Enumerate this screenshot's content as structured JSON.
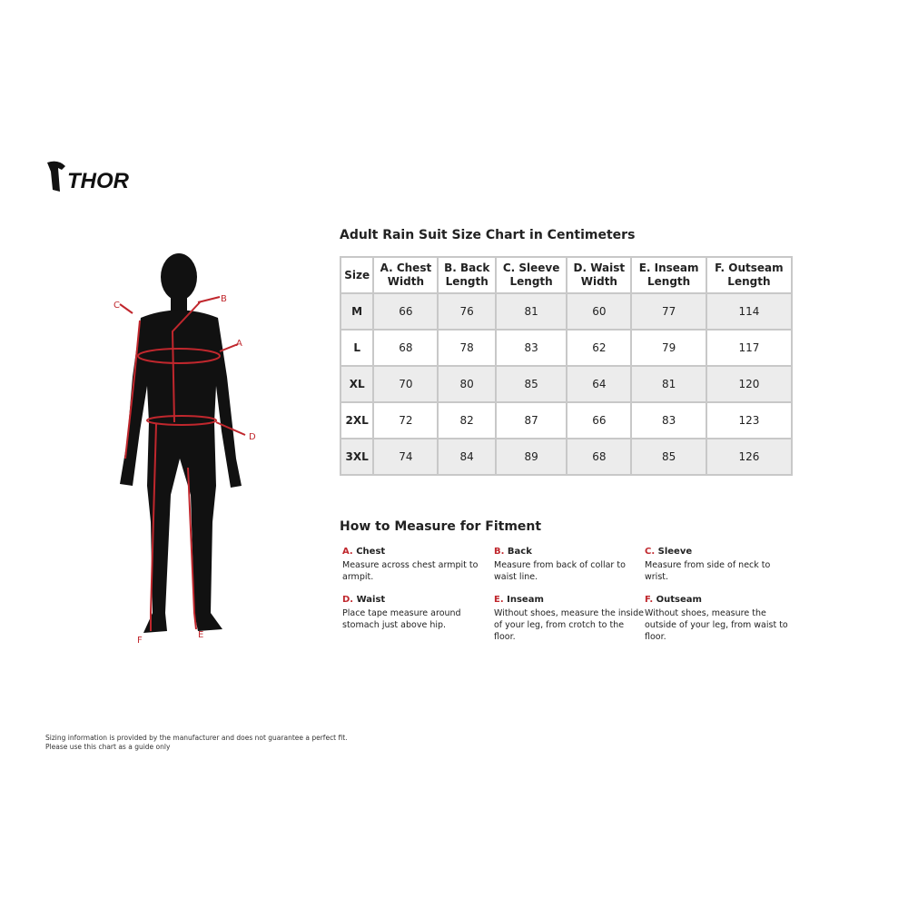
{
  "brand": "THOR",
  "title": "Adult Rain Suit Size Chart in Centimeters",
  "table": {
    "headers": [
      [
        "Size",
        ""
      ],
      [
        "A. Chest",
        "Width"
      ],
      [
        "B. Back",
        "Length"
      ],
      [
        "C. Sleeve",
        "Length"
      ],
      [
        "D. Waist",
        "Width"
      ],
      [
        "E. Inseam",
        "Length"
      ],
      [
        "F. Outseam",
        "Length"
      ]
    ],
    "rows": [
      [
        "M",
        "66",
        "76",
        "81",
        "60",
        "77",
        "114"
      ],
      [
        "L",
        "68",
        "78",
        "83",
        "62",
        "79",
        "117"
      ],
      [
        "XL",
        "70",
        "80",
        "85",
        "64",
        "81",
        "120"
      ],
      [
        "2XL",
        "72",
        "82",
        "87",
        "66",
        "83",
        "123"
      ],
      [
        "3XL",
        "74",
        "84",
        "89",
        "68",
        "85",
        "126"
      ]
    ]
  },
  "howto_title": "How to Measure for Fitment",
  "measures": [
    {
      "letter": "A.",
      "name": "Chest",
      "desc": "Measure across chest armpit to armpit."
    },
    {
      "letter": "B.",
      "name": "Back",
      "desc": "Measure from back of collar to waist line."
    },
    {
      "letter": "C.",
      "name": "Sleeve",
      "desc": "Measure from side of neck to wrist."
    },
    {
      "letter": "D.",
      "name": "Waist",
      "desc": "Place tape measure around stomach just above hip."
    },
    {
      "letter": "E.",
      "name": "Inseam",
      "desc": "Without shoes, measure the inside of your leg, from crotch to the floor."
    },
    {
      "letter": "F.",
      "name": "Outseam",
      "desc": "Without shoes, measure the outside of your leg, from waist to floor."
    }
  ],
  "figure_labels": [
    "A",
    "B",
    "C",
    "D",
    "E",
    "F"
  ],
  "disclaimer": [
    "Sizing information is provided by the manufacturer and does not guarantee a perfect fit.",
    "Please use this chart as a guide only"
  ],
  "colors": {
    "accent": "#c0272d",
    "row_alt": "#ececec",
    "border": "#c8c8c8"
  }
}
